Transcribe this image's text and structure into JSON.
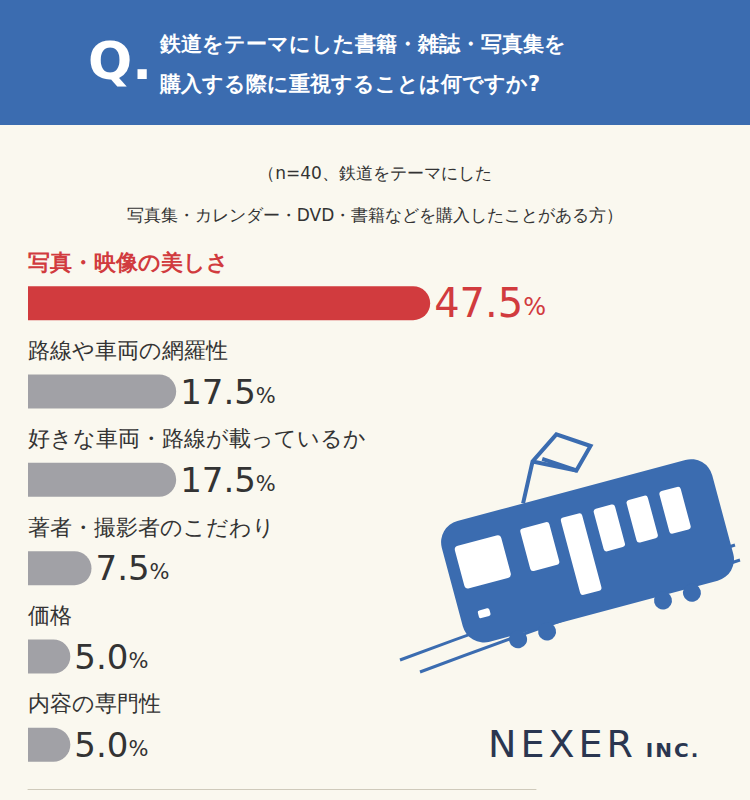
{
  "badge": "Q.",
  "logo": "NEXER INC.",
  "chart_data": {
    "type": "bar",
    "title": "鉄道をテーマにした書籍・雑誌・写真集を\n購入する際に重視することは何ですか?",
    "subtitle": "（n=40、鉄道をテーマにした\n写真集・カレンダー・DVD・書籍などを購入したことがある方）",
    "categories": [
      "写真・映像の美しさ",
      "路線や車両の網羅性",
      "好きな車両・路線が載っているか",
      "著者・撮影者のこだわり",
      "価格",
      "内容の専門性"
    ],
    "values": [
      47.5,
      17.5,
      17.5,
      7.5,
      5.0,
      5.0
    ],
    "value_labels": [
      "47.5%",
      "17.5%",
      "17.5%",
      "7.5%",
      "5.0%",
      "5.0%"
    ],
    "colors": [
      "#d13b3e",
      "#a1a1a6",
      "#a1a1a6",
      "#a1a1a6",
      "#a1a1a6",
      "#a1a1a6"
    ],
    "orientation": "horizontal",
    "data_labels": true,
    "tick_labels": false,
    "xlim": [
      0,
      60
    ]
  }
}
